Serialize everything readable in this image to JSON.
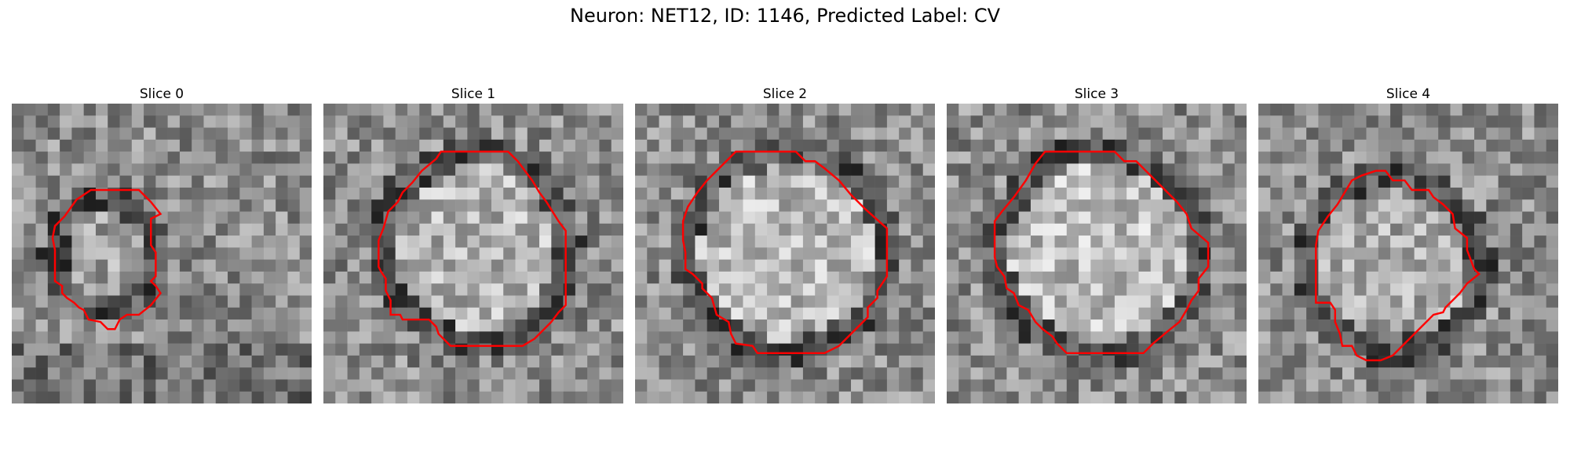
{
  "figure": {
    "title": "Neuron: NET12, ID: 1146, Predicted Label: CV"
  },
  "panels": [
    {
      "label": "Slice 0"
    },
    {
      "label": "Slice 1"
    },
    {
      "label": "Slice 2"
    },
    {
      "label": "Slice 3"
    },
    {
      "label": "Slice 4"
    }
  ],
  "colors": {
    "contour": "#ff0000",
    "background": "#ffffff"
  },
  "grid_size": 25
}
